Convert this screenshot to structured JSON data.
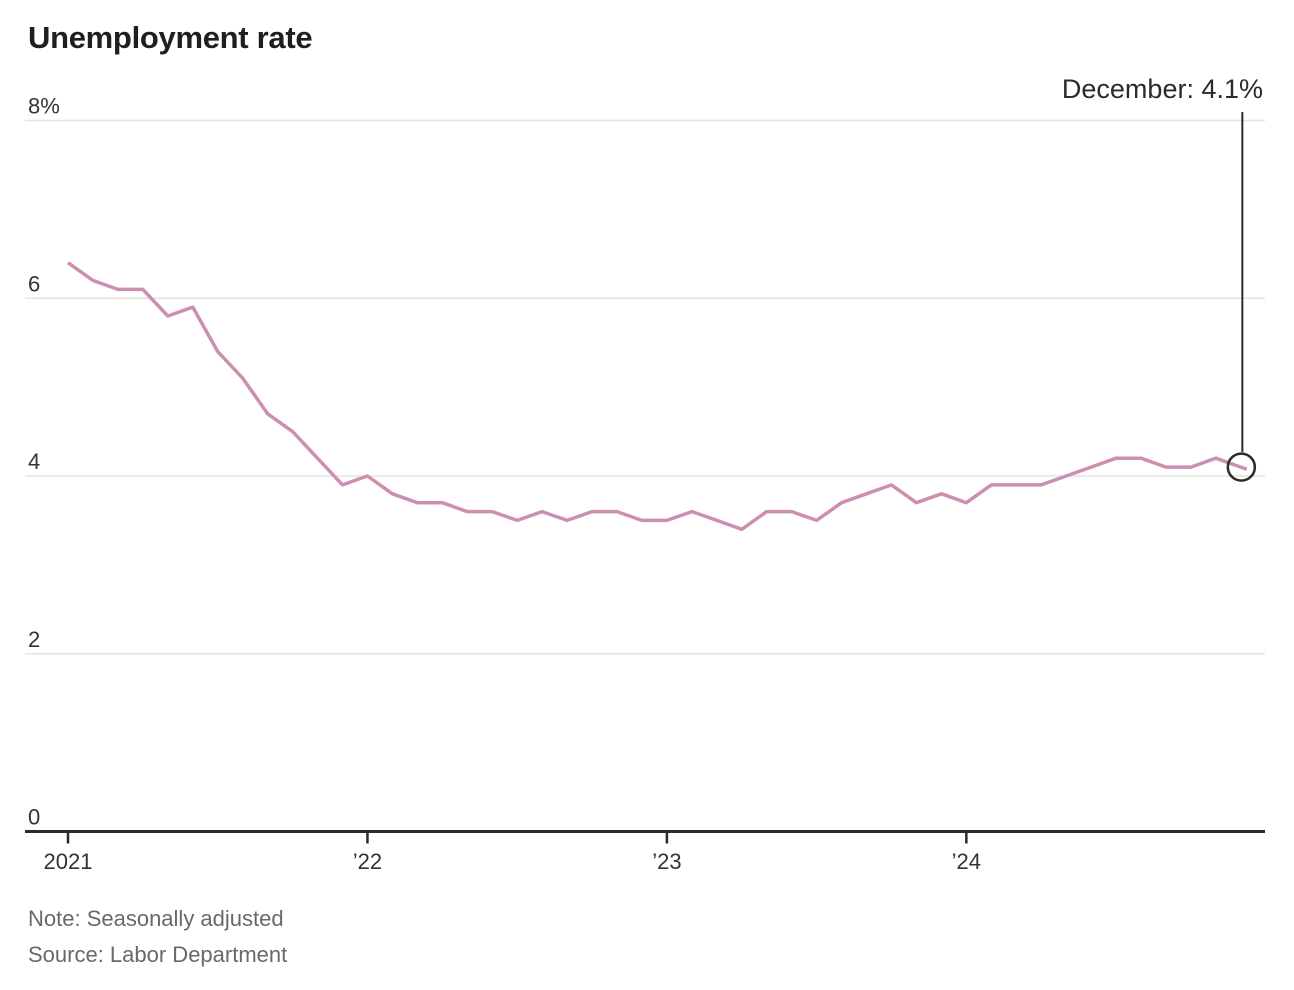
{
  "title": "Unemployment rate",
  "annotation": {
    "label": "December: 4.1%"
  },
  "note": "Note: Seasonally adjusted",
  "source": "Source: Labor Department",
  "colors": {
    "line": "#cd8fb0",
    "grid": "#e3e3e3",
    "axis": "#2b2b2b",
    "tick_text": "#333333",
    "annotation_text": "#2b2b2b",
    "note_text": "#696969",
    "title_text": "#1f1f1f"
  },
  "chart_data": {
    "type": "line",
    "title": "Unemployment rate",
    "unit": "percent",
    "x_tick_labels": [
      "2021",
      "’22",
      "’23",
      "’24"
    ],
    "x_tick_month_index": [
      0,
      12,
      24,
      36
    ],
    "months": [
      "2021-01",
      "2021-02",
      "2021-03",
      "2021-04",
      "2021-05",
      "2021-06",
      "2021-07",
      "2021-08",
      "2021-09",
      "2021-10",
      "2021-11",
      "2021-12",
      "2022-01",
      "2022-02",
      "2022-03",
      "2022-04",
      "2022-05",
      "2022-06",
      "2022-07",
      "2022-08",
      "2022-09",
      "2022-10",
      "2022-11",
      "2022-12",
      "2023-01",
      "2023-02",
      "2023-03",
      "2023-04",
      "2023-05",
      "2023-06",
      "2023-07",
      "2023-08",
      "2023-09",
      "2023-10",
      "2023-11",
      "2023-12",
      "2024-01",
      "2024-02",
      "2024-03",
      "2024-04",
      "2024-05",
      "2024-06",
      "2024-07",
      "2024-08",
      "2024-09",
      "2024-10",
      "2024-11",
      "2024-12"
    ],
    "series": [
      {
        "name": "Unemployment rate",
        "values": [
          6.4,
          6.2,
          6.1,
          6.1,
          5.8,
          5.9,
          5.4,
          5.1,
          4.7,
          4.5,
          4.2,
          3.9,
          4.0,
          3.8,
          3.7,
          3.7,
          3.6,
          3.6,
          3.5,
          3.6,
          3.5,
          3.6,
          3.6,
          3.5,
          3.5,
          3.6,
          3.5,
          3.4,
          3.6,
          3.6,
          3.5,
          3.7,
          3.8,
          3.9,
          3.7,
          3.8,
          3.7,
          3.9,
          3.9,
          3.9,
          4.0,
          4.1,
          4.2,
          4.2,
          4.1,
          4.1,
          4.2,
          4.1
        ]
      }
    ],
    "y_ticks": [
      0,
      2,
      4,
      6,
      8
    ],
    "y_tick_labels": [
      "0",
      "2",
      "4",
      "6",
      "8%"
    ],
    "ylim": [
      0,
      8
    ],
    "grid": true,
    "legend_position": "none",
    "highlight_last_point": {
      "label": "December: 4.1%",
      "value": 4.1,
      "marker": "open-circle"
    },
    "note": "Seasonally adjusted",
    "source": "Labor Department"
  }
}
